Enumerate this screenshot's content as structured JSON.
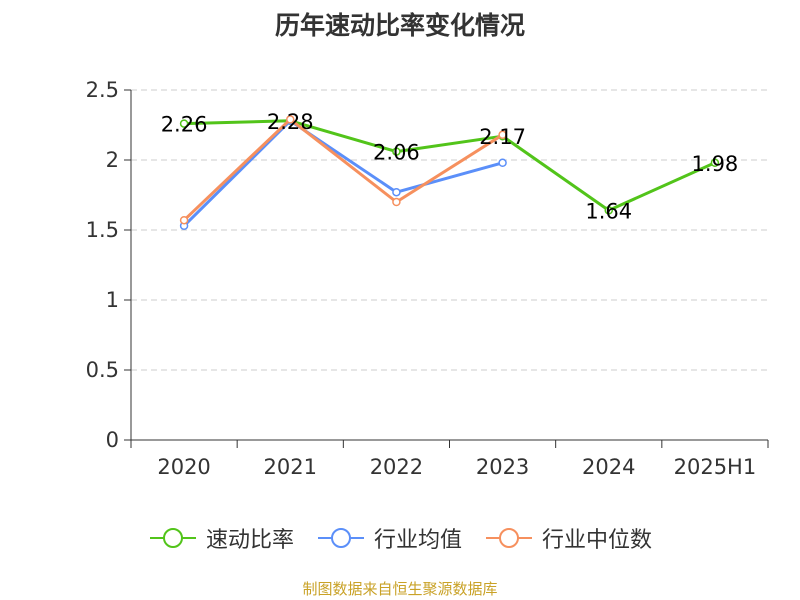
{
  "title": "历年速动比率变化情况",
  "source_note": "制图数据来自恒生聚源数据库",
  "chart_data": {
    "type": "line",
    "categories": [
      "2020",
      "2021",
      "2022",
      "2023",
      "2024",
      "2025H1"
    ],
    "ylim": [
      0,
      2.5
    ],
    "yticks": [
      "0",
      "0.5",
      "1",
      "1.5",
      "2",
      "2.5"
    ],
    "ytick_values": [
      0,
      0.5,
      1,
      1.5,
      2,
      2.5
    ],
    "grid": true,
    "legend_position": "bottom",
    "series": [
      {
        "name": "速动比率",
        "color": "#52c41a",
        "values": [
          2.26,
          2.28,
          2.06,
          2.17,
          1.64,
          1.98
        ],
        "labels": [
          "2.26",
          "2.28",
          "2.06",
          "2.17",
          "1.64",
          "1.98"
        ]
      },
      {
        "name": "行业均值",
        "color": "#5b8ff9",
        "values": [
          1.53,
          2.28,
          1.77,
          1.98,
          null,
          null
        ]
      },
      {
        "name": "行业中位数",
        "color": "#f6905e",
        "values": [
          1.57,
          2.29,
          1.7,
          2.18,
          null,
          null
        ]
      }
    ]
  }
}
